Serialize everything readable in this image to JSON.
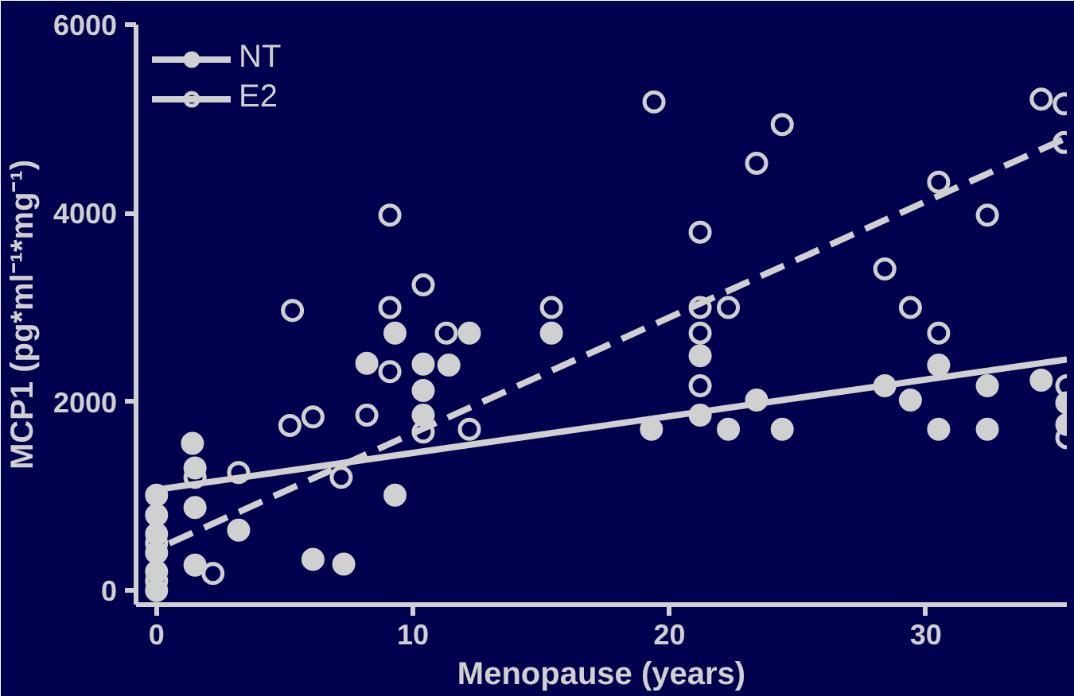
{
  "chart_data": {
    "type": "scatter",
    "xlabel": "Menopause (years)",
    "ylabel": "MCP1 (pg*ml⁻¹*mg⁻¹)",
    "xlim": [
      -0.8,
      35.5
    ],
    "ylim": [
      -150,
      6000
    ],
    "xticks": [
      0,
      10,
      20,
      30
    ],
    "yticks": [
      0,
      2000,
      4000,
      6000
    ],
    "grid": false,
    "legend": "top left",
    "series": [
      {
        "name": "NT",
        "marker": "circle",
        "color": "#d0d0d0",
        "x": [
          0,
          0,
          0,
          0,
          0,
          0,
          1.4,
          1.5,
          1.5,
          1.5,
          3.2,
          6.1,
          7.3,
          9.3,
          8.2,
          10.4,
          10.4,
          10.4,
          9.3,
          12.2,
          15.4,
          11.4,
          21.2,
          21.2,
          19.3,
          22.3,
          24.4,
          23.4,
          28.4,
          29.4,
          30.5,
          32.4,
          30.5,
          32.4,
          34.5,
          35.5,
          35.5
        ],
        "values": [
          1010,
          800,
          600,
          400,
          200,
          0,
          1560,
          1300,
          880,
          270,
          640,
          330,
          280,
          1010,
          2410,
          2120,
          2400,
          1860,
          2730,
          2730,
          2730,
          2390,
          2490,
          1860,
          1710,
          1710,
          1710,
          2020,
          2170,
          2020,
          1710,
          1710,
          2390,
          2170,
          2230,
          1990,
          1760
        ]
      },
      {
        "name": "E2",
        "marker": "circle",
        "color": "#d0d0d0",
        "x": [
          0,
          0,
          1.5,
          2.2,
          3.2,
          5.3,
          5.2,
          6.1,
          7.2,
          8.2,
          9.1,
          9.1,
          9.1,
          10.4,
          10.4,
          11.3,
          12.2,
          15.4,
          19.4,
          24.4,
          23.4,
          21.2,
          21.2,
          22.3,
          21.2,
          21.2,
          28.4,
          29.4,
          30.5,
          30.5,
          32.4,
          34.5,
          35.4,
          35.4,
          35.5,
          35.5
        ],
        "values": [
          100,
          500,
          1200,
          180,
          1250,
          2970,
          1750,
          1840,
          1200,
          1860,
          3980,
          3000,
          2320,
          3240,
          1680,
          2730,
          1710,
          3000,
          5180,
          4940,
          4530,
          3800,
          3000,
          3000,
          2730,
          2170,
          3410,
          3000,
          2730,
          4330,
          3980,
          5210,
          5160,
          4750,
          2170,
          1620
        ]
      },
      {
        "type": "line",
        "line_style": "solid",
        "color": "#d0d0d0",
        "x": [
          0,
          35.5
        ],
        "values": [
          1070,
          2450
        ]
      },
      {
        "type": "line",
        "line_style": "dashed",
        "color": "#d0d0d0",
        "x": [
          0.5,
          35.5
        ],
        "values": [
          500,
          4800
        ]
      }
    ]
  }
}
